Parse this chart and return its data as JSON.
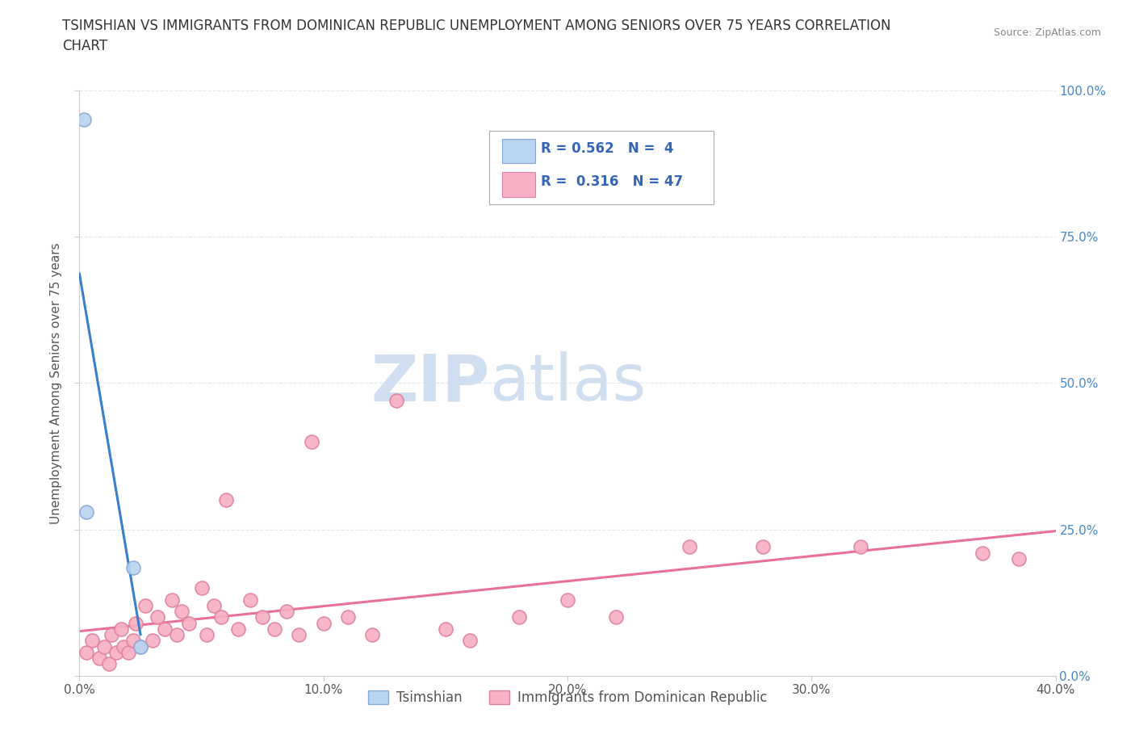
{
  "title_line1": "TSIMSHIAN VS IMMIGRANTS FROM DOMINICAN REPUBLIC UNEMPLOYMENT AMONG SENIORS OVER 75 YEARS CORRELATION",
  "title_line2": "CHART",
  "source_text": "Source: ZipAtlas.com",
  "ylabel": "Unemployment Among Seniors over 75 years",
  "xlim": [
    0.0,
    0.4
  ],
  "ylim": [
    0.0,
    1.0
  ],
  "xtick_values": [
    0.0,
    0.1,
    0.2,
    0.3,
    0.4
  ],
  "ytick_labels_right": [
    "0.0%",
    "25.0%",
    "50.0%",
    "75.0%",
    "100.0%"
  ],
  "ytick_values": [
    0.0,
    0.25,
    0.5,
    0.75,
    1.0
  ],
  "background_color": "#ffffff",
  "watermark_zip": "ZIP",
  "watermark_atlas": "atlas",
  "watermark_color": "#d0dff0",
  "series1_color": "#b8d4f0",
  "series1_edge": "#88aad8",
  "series1_line_color": "#3a7fcc",
  "series1_label": "Tsimshian",
  "series1_R": "0.562",
  "series1_N": "4",
  "series1_x": [
    0.002,
    0.003,
    0.022,
    0.025
  ],
  "series1_y": [
    0.95,
    0.28,
    0.185,
    0.05
  ],
  "series2_color": "#f8b0c4",
  "series2_edge": "#e080a0",
  "series2_line_color": "#e87098",
  "series2_label": "Immigrants from Dominican Republic",
  "series2_R": "0.316",
  "series2_N": "47",
  "series2_x": [
    0.003,
    0.005,
    0.008,
    0.01,
    0.012,
    0.013,
    0.015,
    0.017,
    0.018,
    0.02,
    0.022,
    0.023,
    0.025,
    0.027,
    0.03,
    0.032,
    0.035,
    0.038,
    0.04,
    0.042,
    0.045,
    0.05,
    0.052,
    0.055,
    0.058,
    0.06,
    0.065,
    0.07,
    0.075,
    0.08,
    0.085,
    0.09,
    0.095,
    0.1,
    0.11,
    0.12,
    0.13,
    0.15,
    0.16,
    0.18,
    0.2,
    0.22,
    0.25,
    0.28,
    0.32,
    0.37,
    0.385
  ],
  "series2_y": [
    0.04,
    0.06,
    0.03,
    0.05,
    0.02,
    0.07,
    0.04,
    0.08,
    0.05,
    0.04,
    0.06,
    0.09,
    0.05,
    0.12,
    0.06,
    0.1,
    0.08,
    0.13,
    0.07,
    0.11,
    0.09,
    0.15,
    0.07,
    0.12,
    0.1,
    0.3,
    0.08,
    0.13,
    0.1,
    0.08,
    0.11,
    0.07,
    0.4,
    0.09,
    0.1,
    0.07,
    0.47,
    0.08,
    0.06,
    0.1,
    0.13,
    0.1,
    0.22,
    0.22,
    0.22,
    0.21,
    0.2
  ],
  "legend_color": "#3366bb",
  "grid_color": "#dde8f0",
  "grid_style": "--",
  "title_fontsize": 12,
  "axis_label_fontsize": 11,
  "tick_fontsize": 11
}
